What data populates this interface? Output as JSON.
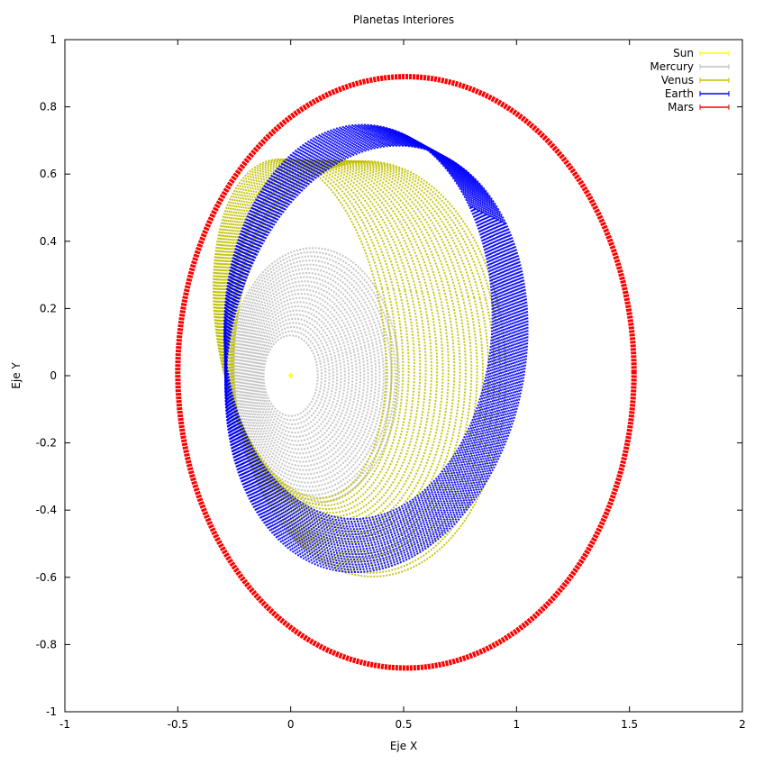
{
  "chart_data": {
    "type": "scatter",
    "title": "Planetas Interiores",
    "xlabel": "Eje X",
    "ylabel": "Eje Y",
    "xlim": [
      -1,
      2
    ],
    "ylim": [
      -1,
      1
    ],
    "xticks": [
      "-1",
      "-0.5",
      "0",
      "0.5",
      "1",
      "1.5",
      "2"
    ],
    "yticks": [
      "1",
      "0.8",
      "0.6",
      "0.4",
      "0.2",
      "0",
      "-0.2",
      "-0.4",
      "-0.6",
      "-0.8",
      "-1"
    ],
    "xtick_values": [
      -1,
      -0.5,
      0,
      0.5,
      1,
      1.5,
      2
    ],
    "ytick_values": [
      1,
      0.8,
      0.6,
      0.4,
      0.2,
      0,
      -0.2,
      -0.4,
      -0.6,
      -0.8,
      -1
    ],
    "grid": false,
    "legend_position": "top-right",
    "series": [
      {
        "name": "Sun",
        "color": "#ffff00",
        "kind": "point",
        "x": 0.0,
        "y": 0.0
      },
      {
        "name": "Mercury",
        "color": "#c0c0c0",
        "kind": "band",
        "center_x": [
          0.0,
          0.1
        ],
        "center_y": [
          0.0,
          0.0
        ],
        "rx": [
          0.12,
          0.38
        ],
        "ry": [
          0.12,
          0.38
        ],
        "tilt_deg": 18
      },
      {
        "name": "Venus",
        "color": "#c0c000",
        "kind": "band",
        "center_x": [
          0.04,
          0.35
        ],
        "center_y": [
          0.14,
          0.02
        ],
        "rx": [
          0.36,
          0.6
        ],
        "ry": [
          0.52,
          0.62
        ],
        "tilt_deg": 20
      },
      {
        "name": "Earth",
        "color": "#0000ff",
        "kind": "band",
        "center_x": [
          0.3,
          0.38
        ],
        "center_y": [
          0.16,
          0.05
        ],
        "rx": [
          0.6,
          0.7
        ],
        "ry": [
          0.58,
          0.6
        ],
        "tilt_deg": 35
      },
      {
        "name": "Mars",
        "color": "#ff0000",
        "kind": "ring",
        "center_x": 0.51,
        "center_y": 0.01,
        "rx": 1.01,
        "ry": 0.88,
        "tilt_deg": 0
      }
    ]
  }
}
